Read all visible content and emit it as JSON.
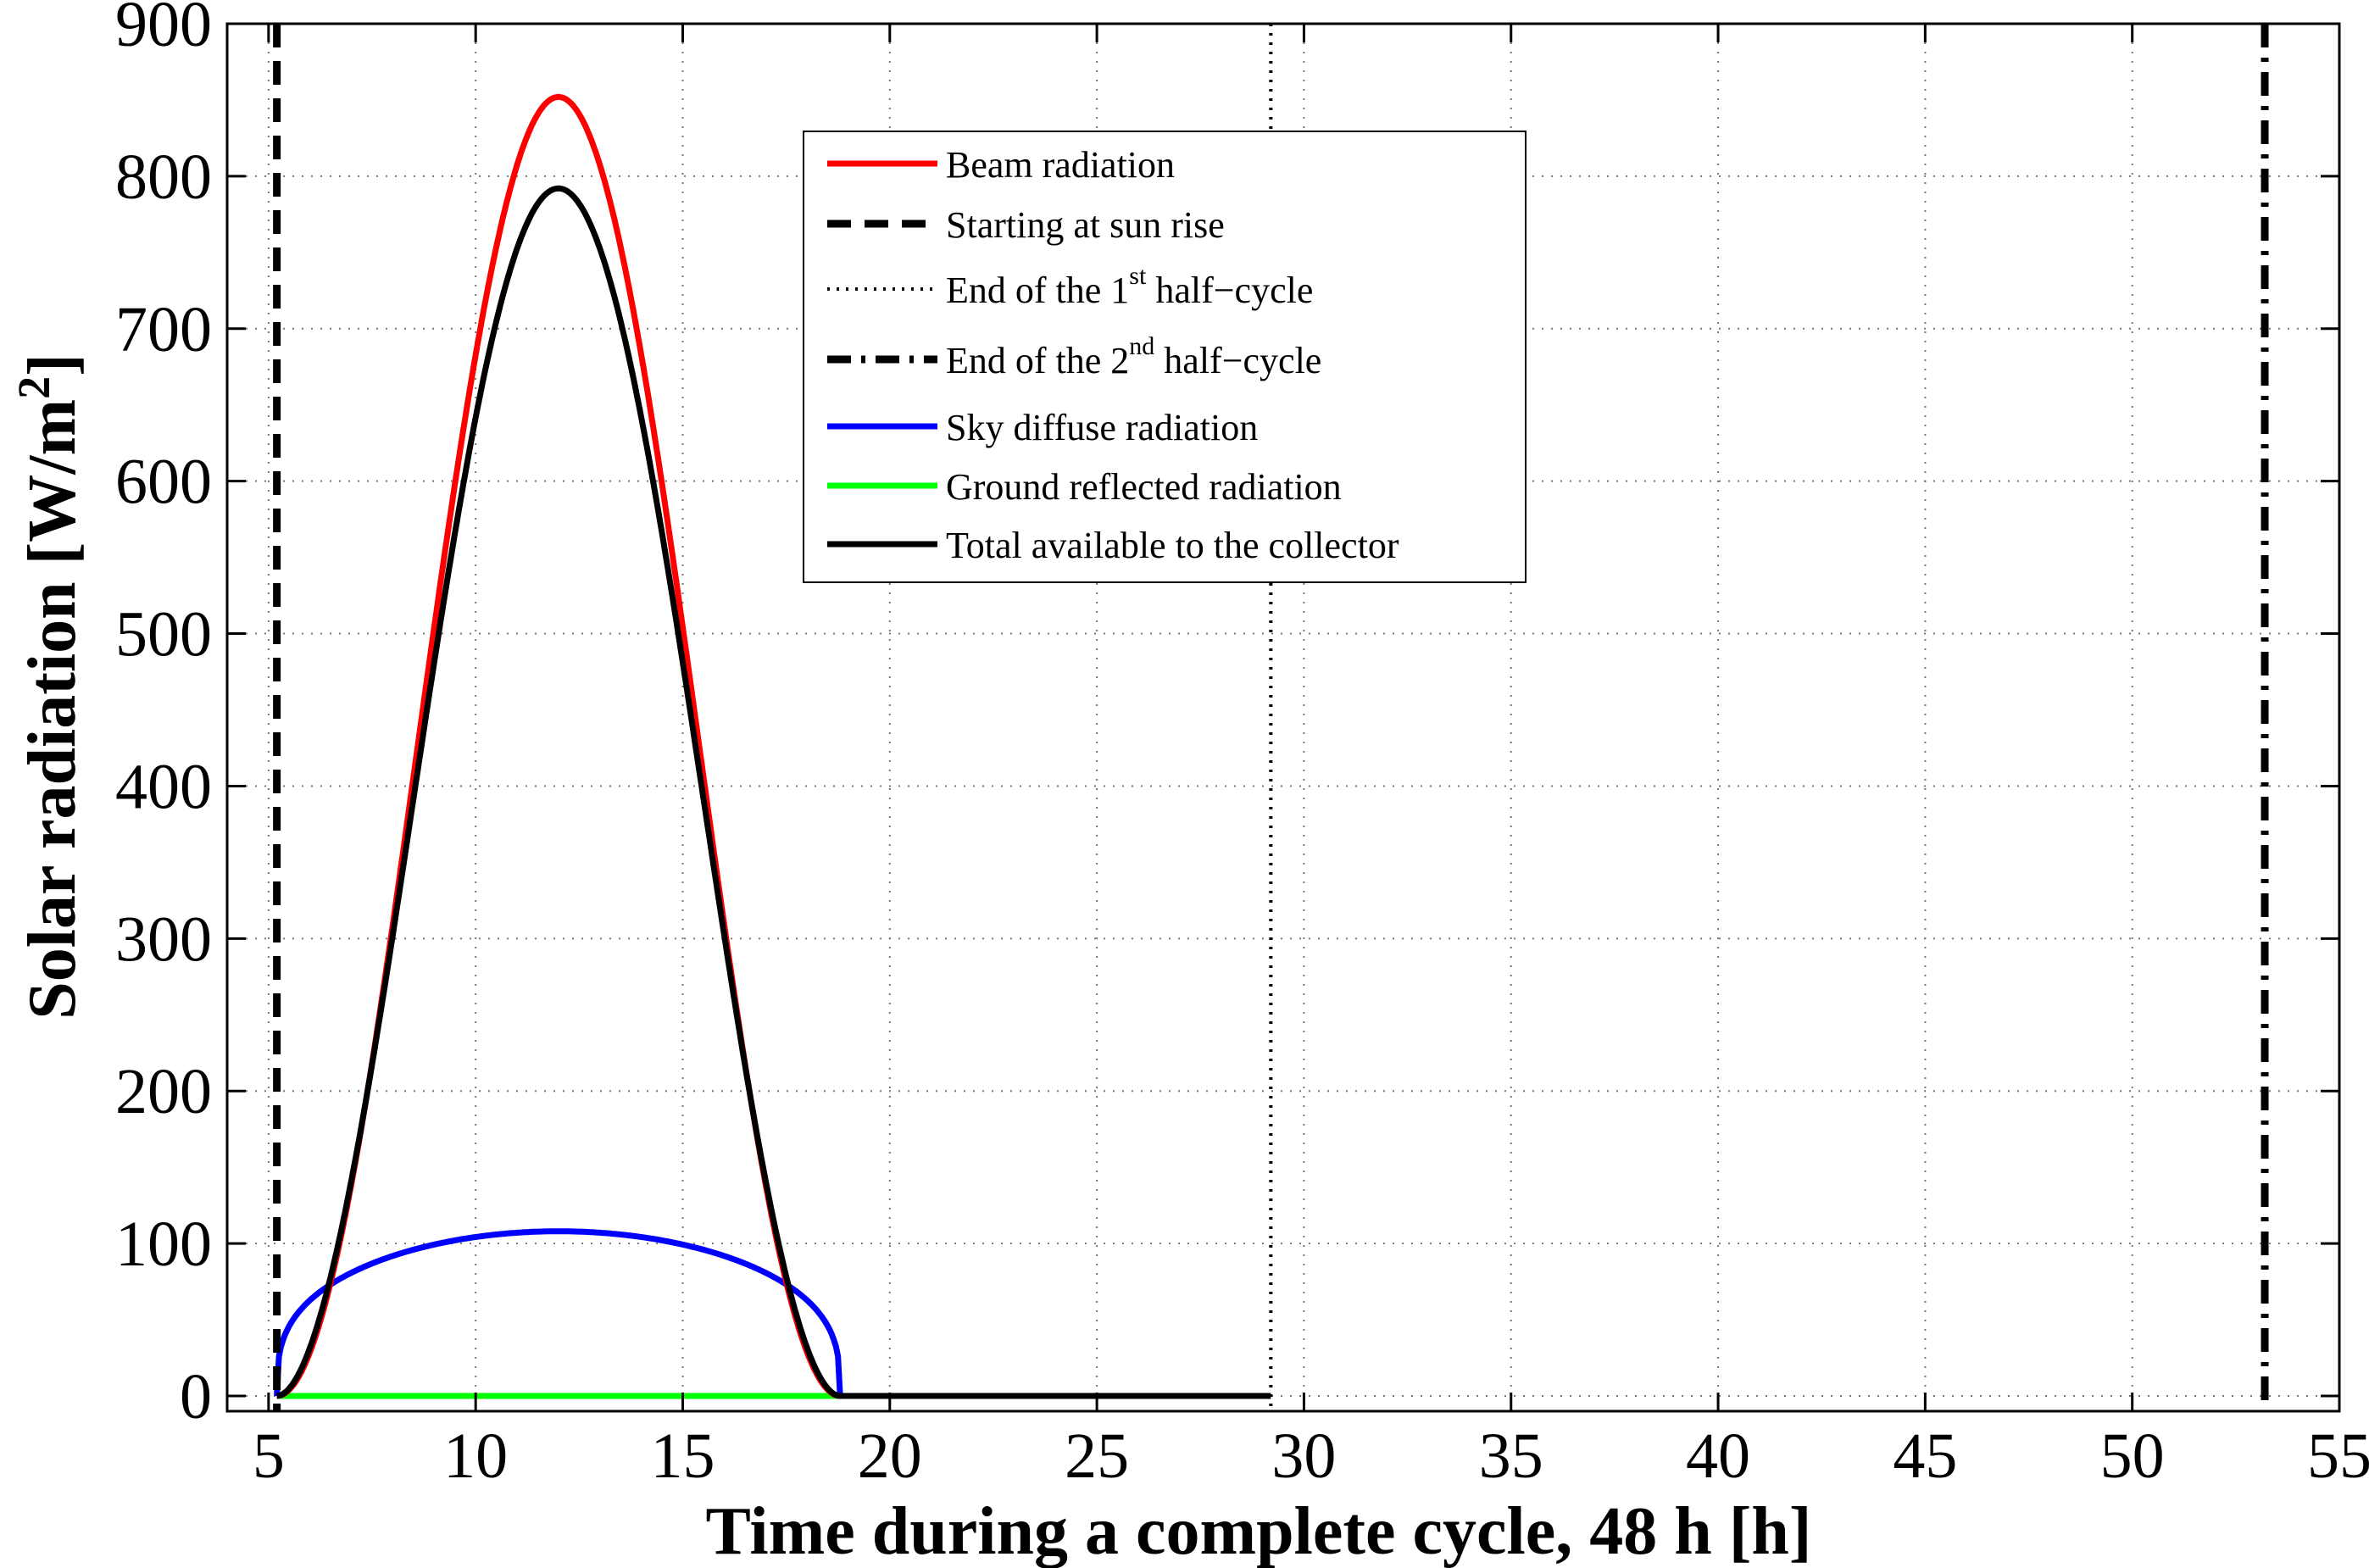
{
  "chart_data": {
    "type": "line",
    "xlabel": "Time during a complete cycle, 48 h  [h]",
    "ylabel": "Solar radiation [W/m",
    "ylabel_sup": "2",
    "ylabel_end": "]",
    "xlim": [
      4,
      55
    ],
    "ylim": [
      -10,
      900
    ],
    "xticks": [
      5,
      10,
      15,
      20,
      25,
      30,
      35,
      40,
      45,
      50,
      55
    ],
    "yticks": [
      0,
      100,
      200,
      300,
      400,
      500,
      600,
      700,
      800,
      900
    ],
    "xtick_labels": [
      "5",
      "10",
      "15",
      "20",
      "25",
      "30",
      "35",
      "40",
      "45",
      "50",
      "55"
    ],
    "ytick_labels": [
      "0",
      "100",
      "200",
      "300",
      "400",
      "500",
      "600",
      "700",
      "800",
      "900"
    ],
    "grid": true,
    "legend_position": "top-center",
    "sun_curve": {
      "sunrise": 5.2,
      "sunset": 18.8,
      "noon": 12.0,
      "zero_until": 29.2,
      "beam_peak": 852,
      "total_peak": 792,
      "sky_diffuse_peak": 108,
      "ground_reflected_peak": 0
    },
    "vertical_lines": [
      {
        "name": "Starting at sun rise",
        "x": 5.2,
        "style": "dashed"
      },
      {
        "name": "End of the 1st half-cycle",
        "x": 29.2,
        "style": "dotted"
      },
      {
        "name": "End of the 2nd half-cycle",
        "x": 53.2,
        "style": "dashdot"
      }
    ],
    "series": [
      {
        "name": "Beam radiation",
        "color": "#ff0000",
        "style": "solid",
        "peak": 852
      },
      {
        "name": "Sky diffuse radiation",
        "color": "#0000ff",
        "style": "solid",
        "peak": 108
      },
      {
        "name": "Ground reflected  radiation",
        "color": "#00ff00",
        "style": "solid",
        "peak": 0
      },
      {
        "name": "Total available to the collector",
        "color": "#000000",
        "style": "solid",
        "peak": 792
      }
    ],
    "legend": [
      {
        "label": "Beam radiation",
        "color": "#ff0000",
        "style": "solid"
      },
      {
        "label": "Starting at sun rise",
        "color": "#000000",
        "style": "dashed"
      },
      {
        "label_pre": "End of the 1",
        "sup": "st",
        "label_post": " half−cycle",
        "color": "#000000",
        "style": "dotted"
      },
      {
        "label_pre": "End of the 2",
        "sup": "nd",
        "label_post": " half−cycle",
        "color": "#000000",
        "style": "dashdot"
      },
      {
        "label": "Sky diffuse radiation",
        "color": "#0000ff",
        "style": "solid"
      },
      {
        "label": "Ground reflected  radiation",
        "color": "#00ff00",
        "style": "solid"
      },
      {
        "label": "Total available to the collector",
        "color": "#000000",
        "style": "solid"
      }
    ]
  }
}
